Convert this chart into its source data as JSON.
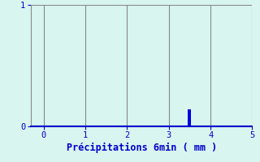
{
  "xlabel": "Précipitations 6min ( mm )",
  "xlim": [
    -0.3,
    5.0
  ],
  "ylim": [
    0,
    1
  ],
  "yticks": [
    0,
    1
  ],
  "xticks": [
    0,
    1,
    2,
    3,
    4,
    5
  ],
  "bar_x": 3.5,
  "bar_height": 0.14,
  "bar_width": 0.08,
  "bar_color": "#0000dd",
  "background_color": "#d8f5f0",
  "axis_color": "#0000cc",
  "grid_color": "#888888",
  "label_color": "#0000cc",
  "xlabel_fontsize": 8.5,
  "tick_fontsize": 7.5,
  "left_spine_color": "#888888",
  "ytick_labelpad": 2,
  "xtick_labelpad": 1
}
